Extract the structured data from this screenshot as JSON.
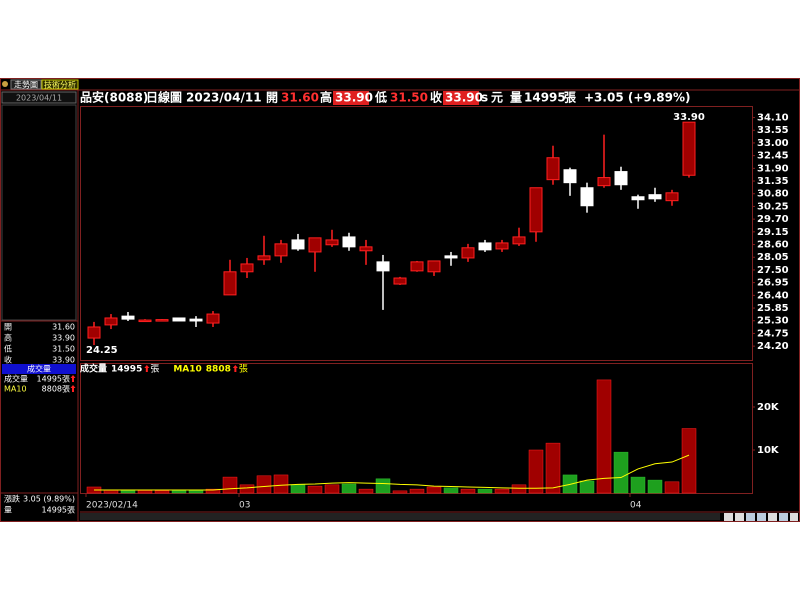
{
  "chart_data": [
    {
      "type": "candlestick",
      "categories": [
        "2023/02/14",
        null,
        null,
        null,
        null,
        null,
        null,
        null,
        null,
        "03",
        null,
        null,
        null,
        null,
        null,
        null,
        null,
        null,
        null,
        null,
        null,
        null,
        null,
        null,
        null,
        null,
        null,
        null,
        null,
        null,
        null,
        null,
        "04",
        null,
        null,
        null
      ],
      "open": [
        24.55,
        25.12,
        25.5,
        25.29,
        25.33,
        25.42,
        25.37,
        25.2,
        26.42,
        27.42,
        27.94,
        28.11,
        28.8,
        28.28,
        28.59,
        28.93,
        28.33,
        27.85,
        26.89,
        27.46,
        27.42,
        28.11,
        28.02,
        28.67,
        28.41,
        28.63,
        29.15,
        31.41,
        31.84,
        31.06,
        31.15,
        31.76,
        30.67,
        30.76,
        30.5,
        31.6
      ],
      "high": [
        25.25,
        25.59,
        25.68,
        25.37,
        25.37,
        25.42,
        25.5,
        25.72,
        27.94,
        28.02,
        28.98,
        28.8,
        29.06,
        28.89,
        29.24,
        29.11,
        28.8,
        28.15,
        27.2,
        27.89,
        27.89,
        28.28,
        28.63,
        28.8,
        28.8,
        29.33,
        31.06,
        32.88,
        31.93,
        31.28,
        33.36,
        31.97,
        30.76,
        31.06,
        30.97,
        33.9
      ],
      "low": [
        24.25,
        24.94,
        25.29,
        25.25,
        25.29,
        25.29,
        25.03,
        25.03,
        26.42,
        27.15,
        27.72,
        27.81,
        28.33,
        27.42,
        28.5,
        28.33,
        27.72,
        25.77,
        26.85,
        27.42,
        27.24,
        27.68,
        27.85,
        28.28,
        28.28,
        28.54,
        28.72,
        31.19,
        30.71,
        29.98,
        31.06,
        30.97,
        30.15,
        30.45,
        30.28,
        31.5
      ],
      "close": [
        25.03,
        25.42,
        25.37,
        25.33,
        25.35,
        25.29,
        25.29,
        25.59,
        27.42,
        27.76,
        28.11,
        28.63,
        28.41,
        28.89,
        28.8,
        28.5,
        28.5,
        27.46,
        27.15,
        27.85,
        27.89,
        28.02,
        28.46,
        28.37,
        28.67,
        28.93,
        31.06,
        32.36,
        31.28,
        30.28,
        31.5,
        31.19,
        30.54,
        30.58,
        30.84,
        33.9
      ],
      "up_color": "#a00000",
      "up_border": "#ff2020",
      "down_color": "#ffffff",
      "high_label": "33.90",
      "low_label": "24.25",
      "ylim": [
        23.6,
        34.6
      ],
      "yticks": [
        {
          "value": 24.2,
          "label": "24.20"
        },
        {
          "value": 24.75,
          "label": "24.75"
        },
        {
          "value": 25.3,
          "label": "25.30"
        },
        {
          "value": 25.85,
          "label": "25.85"
        },
        {
          "value": 26.4,
          "label": "26.40"
        },
        {
          "value": 26.95,
          "label": "26.95"
        },
        {
          "value": 27.5,
          "label": "27.50"
        },
        {
          "value": 28.05,
          "label": "28.05"
        },
        {
          "value": 28.6,
          "label": "28.60"
        },
        {
          "value": 29.15,
          "label": "29.15"
        },
        {
          "value": 29.7,
          "label": "29.70"
        },
        {
          "value": 30.25,
          "label": "30.25"
        },
        {
          "value": 30.8,
          "label": "30.80"
        },
        {
          "value": 31.35,
          "label": "31.35"
        },
        {
          "value": 31.9,
          "label": "31.90"
        },
        {
          "value": 32.45,
          "label": "32.45"
        },
        {
          "value": 33,
          "label": "33.00"
        },
        {
          "value": 33.55,
          "label": "33.55"
        },
        {
          "value": 34.1,
          "label": "34.10"
        }
      ]
    },
    {
      "type": "bar",
      "unit": "張",
      "up_color": "#a00000",
      "down_color": "#1ea01e",
      "series": [
        {
          "name": "成交量",
          "values": [
            1400,
            700,
            500,
            600,
            500,
            500,
            600,
            900,
            3700,
            1900,
            4000,
            4200,
            1900,
            1600,
            1900,
            2100,
            900,
            3300,
            500,
            900,
            1400,
            1200,
            900,
            900,
            900,
            1900,
            10000,
            11600,
            4200,
            2800,
            26300,
            9500,
            3700,
            3000,
            2600,
            14995
          ]
        },
        {
          "name": "MA10",
          "type": "line",
          "color": "#ffff00",
          "values": [
            700,
            700,
            700,
            700,
            700,
            700,
            700,
            700,
            1000,
            1200,
            1500,
            1800,
            2000,
            2100,
            2300,
            2400,
            2300,
            2200,
            2000,
            1900,
            1600,
            1500,
            1400,
            1300,
            1200,
            1100,
            1100,
            1200,
            2000,
            3000,
            3400,
            3600,
            5600,
            6800,
            7200,
            8808
          ]
        }
      ],
      "ylim": [
        0,
        30000
      ],
      "yticks": [
        {
          "value": 10000,
          "label": "10K"
        },
        {
          "value": 20000,
          "label": "20K"
        }
      ]
    }
  ],
  "ui": {
    "tabs": [
      "走勢圖",
      "技術分析"
    ],
    "date": "2023/04/11",
    "header": {
      "stock": "品安(8088)",
      "period": "日線圖",
      "date": "2023/04/11",
      "open_label": "開",
      "open": "31.60",
      "high_label": "高",
      "high": "33.90",
      "low_label": "低",
      "low": "31.50",
      "close_label": "收",
      "close": "33.90",
      "flag": "s",
      "currency": "元",
      "volume_label": "量",
      "volume": "14995",
      "volume_unit": "張",
      "change": "+3.05 (+9.89%)"
    },
    "info": [
      [
        "開",
        "31.60"
      ],
      [
        "高",
        "33.90"
      ],
      [
        "低",
        "31.50"
      ],
      [
        "收",
        "33.90"
      ]
    ],
    "volume_title": "成交量",
    "volume_info": [
      [
        "成交量",
        "14995張"
      ],
      [
        "MA10",
        "8808張"
      ]
    ],
    "footer_info": [
      [
        "漲跌",
        "3.05 (9.89%)"
      ],
      [
        "量",
        "14995張"
      ]
    ]
  }
}
